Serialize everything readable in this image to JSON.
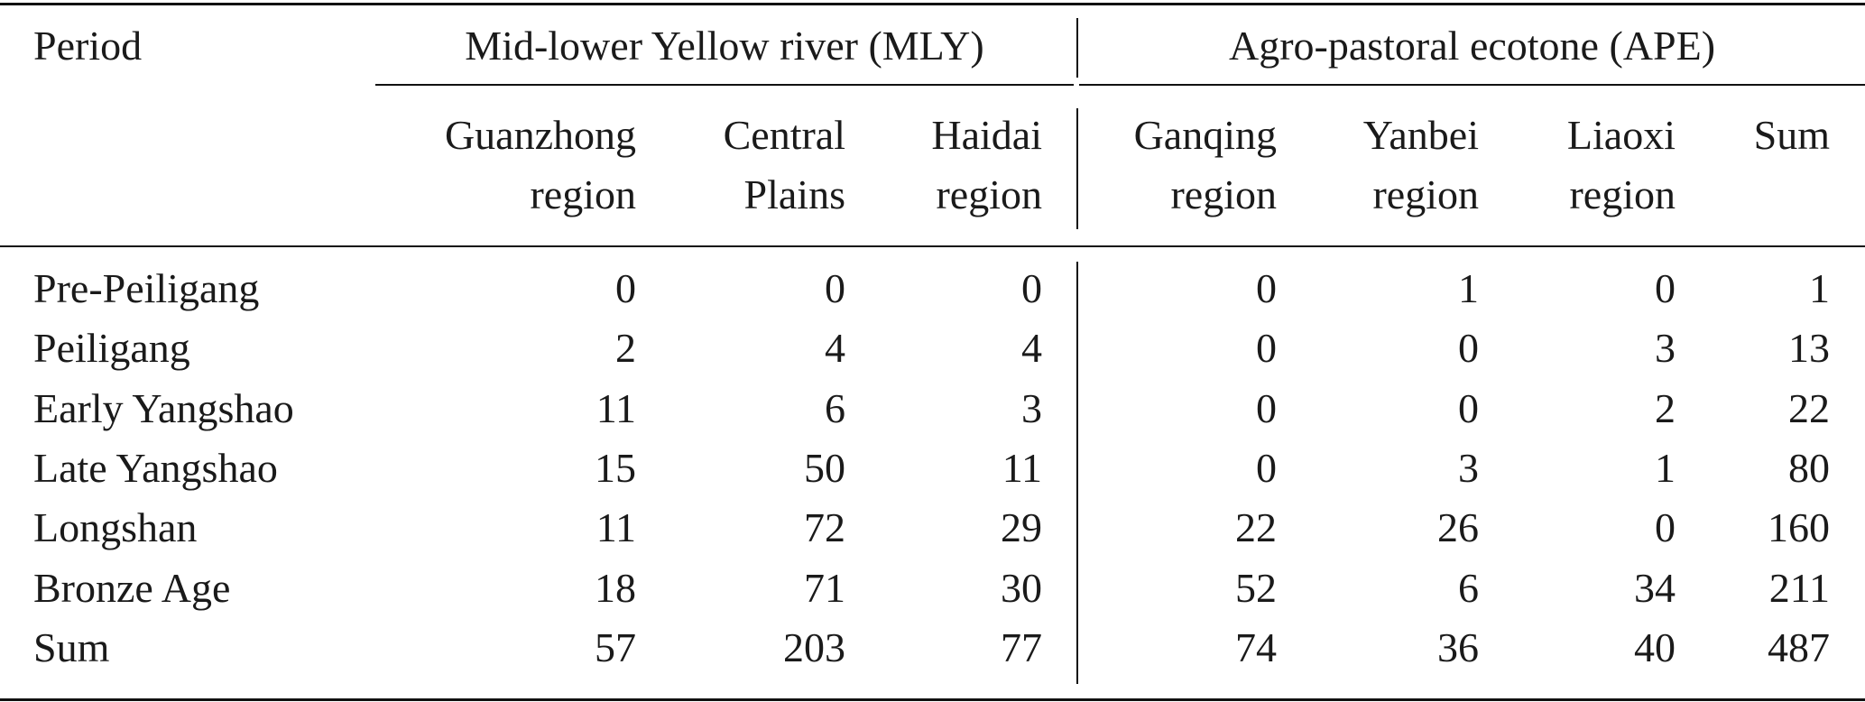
{
  "table": {
    "period_header": "Period",
    "group_headers": [
      "Mid-lower Yellow river (MLY)",
      "Agro-pastoral ecotone (APE)"
    ],
    "column_headers": [
      [
        "Guanzhong",
        "region"
      ],
      [
        "Central",
        "Plains"
      ],
      [
        "Haidai",
        "region"
      ],
      [
        "Ganqing",
        "region"
      ],
      [
        "Yanbei",
        "region"
      ],
      [
        "Liaoxi",
        "region"
      ],
      [
        "Sum",
        ""
      ]
    ],
    "rows": [
      {
        "period": "Pre-Peiligang",
        "values": [
          "0",
          "0",
          "0",
          "0",
          "1",
          "0",
          "1"
        ]
      },
      {
        "period": "Peiligang",
        "values": [
          "2",
          "4",
          "4",
          "0",
          "0",
          "3",
          "13"
        ]
      },
      {
        "period": "Early Yangshao",
        "values": [
          "11",
          "6",
          "3",
          "0",
          "0",
          "2",
          "22"
        ]
      },
      {
        "period": "Late Yangshao",
        "values": [
          "15",
          "50",
          "11",
          "0",
          "3",
          "1",
          "80"
        ]
      },
      {
        "period": "Longshan",
        "values": [
          "11",
          "72",
          "29",
          "22",
          "26",
          "0",
          "160"
        ]
      },
      {
        "period": "Bronze Age",
        "values": [
          "18",
          "71",
          "30",
          "52",
          "6",
          "34",
          "211"
        ]
      },
      {
        "period": "Sum",
        "values": [
          "57",
          "203",
          "77",
          "74",
          "36",
          "40",
          "487"
        ]
      }
    ]
  }
}
